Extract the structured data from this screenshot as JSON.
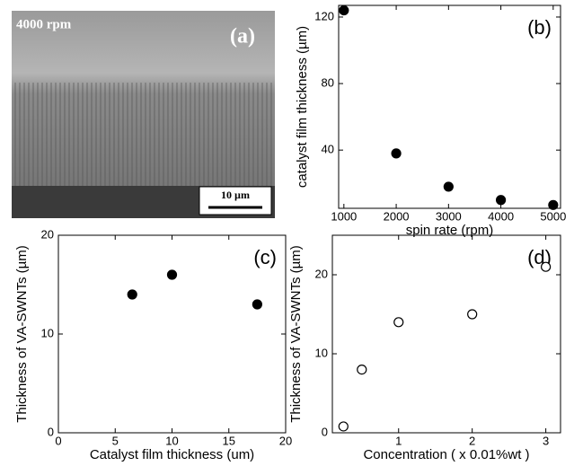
{
  "image_panel": {
    "caption": "4000 rpm",
    "label": "(a)",
    "scale_bar": "10 µm"
  },
  "chart_data": [
    {
      "type": "scatter",
      "annotation": "(b)",
      "x_label": "spin rate (rpm)",
      "y_label": "catalyst film thickness (µm)",
      "x": [
        1000,
        2000,
        3000,
        4000,
        5000
      ],
      "values": [
        124,
        38,
        18,
        10,
        7
      ],
      "color": "#000000",
      "filled": true,
      "xlim": [
        900,
        5140
      ],
      "ylim": [
        5,
        127
      ],
      "xticks": [
        1000,
        2000,
        3000,
        4000,
        5000
      ],
      "yticks": [
        40,
        80,
        120
      ]
    },
    {
      "type": "scatter",
      "annotation": "(c)",
      "x_label": "Catalyst film thickness (um)",
      "y_label": "Thickness of VA-SWNTs (µm)",
      "x": [
        6.5,
        10,
        17.5
      ],
      "values": [
        14,
        16,
        13
      ],
      "color": "#000000",
      "filled": true,
      "xlim": [
        0,
        20
      ],
      "ylim": [
        0,
        20
      ],
      "xticks": [
        0,
        5,
        10,
        15,
        20
      ],
      "yticks": [
        0,
        10,
        20
      ]
    },
    {
      "type": "scatter",
      "annotation": "(d)",
      "x_label": "Concentration ( x 0.01%wt )",
      "y_label": "Thickness of VA-SWNTs (µm)",
      "x": [
        0.25,
        0.5,
        1,
        2,
        3
      ],
      "values": [
        0.8,
        8,
        14,
        15,
        21
      ],
      "color": "#000000",
      "filled": false,
      "xlim": [
        0.1,
        3.2
      ],
      "ylim": [
        0,
        25
      ],
      "xticks": [
        1,
        2,
        3
      ],
      "yticks": [
        0,
        10,
        20
      ]
    }
  ]
}
